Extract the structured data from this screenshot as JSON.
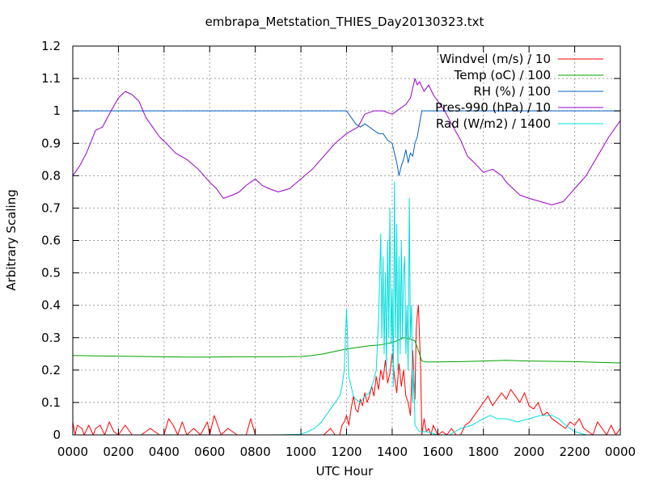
{
  "chart_data": {
    "type": "line",
    "title": "embrapa_Metstation_THIES_Day20130323.txt",
    "xlabel": "UTC Hour",
    "ylabel": "Arbitrary Scaling",
    "xlim": [
      0,
      24
    ],
    "ylim": [
      0,
      1.2
    ],
    "grid": true,
    "legend_position": "top-right",
    "x_ticks": [
      {
        "value": 0,
        "label": "0000"
      },
      {
        "value": 2,
        "label": "0200"
      },
      {
        "value": 4,
        "label": "0400"
      },
      {
        "value": 6,
        "label": "0600"
      },
      {
        "value": 8,
        "label": "0800"
      },
      {
        "value": 10,
        "label": "1000"
      },
      {
        "value": 12,
        "label": "1200"
      },
      {
        "value": 14,
        "label": "1400"
      },
      {
        "value": 16,
        "label": "1600"
      },
      {
        "value": 18,
        "label": "1800"
      },
      {
        "value": 20,
        "label": "2000"
      },
      {
        "value": 22,
        "label": "2200"
      },
      {
        "value": 24,
        "label": "0000"
      }
    ],
    "y_ticks": [
      {
        "value": 0,
        "label": "0"
      },
      {
        "value": 0.1,
        "label": "0.1"
      },
      {
        "value": 0.2,
        "label": "0.2"
      },
      {
        "value": 0.3,
        "label": "0.3"
      },
      {
        "value": 0.4,
        "label": "0.4"
      },
      {
        "value": 0.5,
        "label": "0.5"
      },
      {
        "value": 0.6,
        "label": "0.6"
      },
      {
        "value": 0.7,
        "label": "0.7"
      },
      {
        "value": 0.8,
        "label": "0.8"
      },
      {
        "value": 0.9,
        "label": "0.9"
      },
      {
        "value": 1.0,
        "label": "1"
      },
      {
        "value": 1.1,
        "label": "1.1"
      },
      {
        "value": 1.2,
        "label": "1.2"
      }
    ],
    "series": [
      {
        "name": "Windvel (m/s) / 10",
        "color": "#ff0000",
        "x": [
          0,
          0.1,
          0.2,
          0.4,
          0.5,
          0.7,
          0.9,
          1.0,
          1.2,
          1.4,
          1.6,
          1.8,
          2.0,
          2.3,
          2.6,
          3.0,
          3.4,
          3.8,
          4.0,
          4.2,
          4.4,
          4.6,
          4.8,
          5.0,
          5.3,
          5.6,
          5.9,
          6.0,
          6.2,
          6.5,
          6.8,
          7.2,
          7.6,
          7.8,
          8.0,
          8.4,
          8.8,
          9.2,
          9.6,
          10.0,
          10.5,
          11.0,
          11.3,
          11.5,
          11.7,
          11.8,
          11.9,
          12.0,
          12.1,
          12.2,
          12.3,
          12.4,
          12.5,
          12.6,
          12.7,
          12.8,
          12.9,
          13.0,
          13.1,
          13.2,
          13.3,
          13.4,
          13.5,
          13.6,
          13.7,
          13.8,
          13.9,
          14.0,
          14.1,
          14.2,
          14.3,
          14.4,
          14.5,
          14.6,
          14.7,
          14.8,
          14.9,
          15.0,
          15.05,
          15.1,
          15.15,
          15.2,
          15.25,
          15.3,
          15.4,
          15.5,
          15.6,
          15.7,
          15.8,
          16.0,
          16.2,
          16.4,
          16.6,
          16.8,
          17.0,
          17.2,
          17.4,
          17.6,
          17.8,
          18.0,
          18.2,
          18.4,
          18.6,
          18.8,
          19.0,
          19.2,
          19.4,
          19.6,
          19.8,
          20.0,
          20.2,
          20.4,
          20.6,
          20.8,
          21.0,
          21.2,
          21.4,
          21.6,
          21.8,
          22.0,
          22.2,
          22.4,
          22.6,
          22.8,
          23.0,
          23.2,
          23.4,
          23.6,
          23.8,
          24.0
        ],
        "y": [
          0.04,
          0.0,
          0.03,
          0.02,
          0.0,
          0.03,
          0.0,
          0.02,
          0.03,
          0.0,
          0.04,
          0.01,
          0.0,
          0.03,
          0.0,
          0.0,
          0.02,
          0.0,
          0.0,
          0.05,
          0.03,
          0.0,
          0.04,
          0.0,
          0.02,
          0.0,
          0.04,
          0.0,
          0.06,
          0.0,
          0.02,
          0.0,
          0.0,
          0.05,
          0.0,
          0.0,
          0.0,
          0.0,
          0.0,
          0.0,
          0.0,
          0.0,
          0.02,
          0.0,
          0.0,
          0.03,
          0.04,
          0.06,
          0.03,
          0.08,
          0.12,
          0.08,
          0.07,
          0.11,
          0.09,
          0.13,
          0.1,
          0.12,
          0.15,
          0.12,
          0.18,
          0.14,
          0.2,
          0.17,
          0.23,
          0.16,
          0.19,
          0.25,
          0.18,
          0.13,
          0.22,
          0.15,
          0.2,
          0.12,
          0.1,
          0.06,
          0.26,
          0.11,
          0.32,
          0.37,
          0.4,
          0.3,
          0.2,
          0.0,
          0.05,
          0.01,
          0.02,
          0.0,
          0.03,
          0.0,
          0.01,
          0.0,
          0.02,
          0.0,
          0.0,
          0.03,
          0.04,
          0.06,
          0.08,
          0.1,
          0.12,
          0.09,
          0.11,
          0.13,
          0.11,
          0.14,
          0.12,
          0.1,
          0.13,
          0.09,
          0.08,
          0.1,
          0.06,
          0.07,
          0.05,
          0.04,
          0.03,
          0.02,
          0.04,
          0.03,
          0.05,
          0.02,
          0.01,
          0.0,
          0.04,
          0.02,
          0.0,
          0.03,
          0.0,
          0.02
        ]
      },
      {
        "name": "Temp (oC) / 100",
        "color": "#00a000",
        "x": [
          0,
          1,
          2,
          3,
          4,
          5,
          6,
          7,
          8,
          9,
          10,
          10.5,
          11,
          11.5,
          12,
          12.5,
          13,
          13.5,
          14,
          14.2,
          14.5,
          14.8,
          15,
          15.1,
          15.2,
          15.3,
          15.5,
          16,
          17,
          18,
          19,
          20,
          21,
          22,
          23,
          24
        ],
        "y": [
          0.245,
          0.244,
          0.243,
          0.242,
          0.241,
          0.24,
          0.24,
          0.241,
          0.241,
          0.241,
          0.242,
          0.245,
          0.25,
          0.258,
          0.265,
          0.27,
          0.275,
          0.278,
          0.285,
          0.29,
          0.3,
          0.296,
          0.29,
          0.27,
          0.25,
          0.228,
          0.225,
          0.225,
          0.226,
          0.228,
          0.23,
          0.228,
          0.227,
          0.226,
          0.224,
          0.222
        ]
      },
      {
        "name": "RH (%) / 100",
        "color": "#0060c0",
        "x": [
          0,
          2,
          4,
          6,
          8,
          10,
          11,
          12,
          12.2,
          12.4,
          12.6,
          12.8,
          13,
          13.2,
          13.4,
          13.6,
          13.8,
          14,
          14.1,
          14.2,
          14.3,
          14.4,
          14.5,
          14.6,
          14.7,
          14.8,
          14.9,
          15,
          15.1,
          15.2,
          15.3,
          16,
          18,
          20,
          22,
          24
        ],
        "y": [
          1.0,
          1.0,
          1.0,
          1.0,
          1.0,
          1.0,
          1.0,
          1.0,
          0.98,
          0.96,
          0.95,
          0.96,
          0.95,
          0.94,
          0.93,
          0.93,
          0.91,
          0.9,
          0.87,
          0.84,
          0.8,
          0.83,
          0.85,
          0.88,
          0.84,
          0.87,
          0.86,
          0.9,
          0.92,
          0.96,
          1.0,
          1.0,
          1.0,
          1.0,
          1.0,
          1.0
        ]
      },
      {
        "name": "Pres-990 (hPa) / 10",
        "color": "#9900cc",
        "x": [
          0,
          0.3,
          0.6,
          1.0,
          1.3,
          1.6,
          2.0,
          2.3,
          2.6,
          2.9,
          3.2,
          3.5,
          3.8,
          4.1,
          4.5,
          5.0,
          5.5,
          6.0,
          6.3,
          6.6,
          7.0,
          7.3,
          7.6,
          8.0,
          8.3,
          8.6,
          9.0,
          9.5,
          10.0,
          10.5,
          11.0,
          11.5,
          12.0,
          12.5,
          12.8,
          13.2,
          13.6,
          14.0,
          14.2,
          14.4,
          14.6,
          14.8,
          15.0,
          15.1,
          15.2,
          15.4,
          15.6,
          15.8,
          16.0,
          16.3,
          16.6,
          17.0,
          17.3,
          17.6,
          18.0,
          18.4,
          18.8,
          19.0,
          19.3,
          19.6,
          20.0,
          20.5,
          21.0,
          21.5,
          22.0,
          22.5,
          23.0,
          23.5,
          24.0
        ],
        "y": [
          0.8,
          0.83,
          0.87,
          0.94,
          0.95,
          0.99,
          1.04,
          1.06,
          1.05,
          1.03,
          0.98,
          0.95,
          0.92,
          0.9,
          0.87,
          0.85,
          0.82,
          0.78,
          0.76,
          0.73,
          0.74,
          0.75,
          0.77,
          0.79,
          0.77,
          0.76,
          0.75,
          0.76,
          0.79,
          0.82,
          0.86,
          0.9,
          0.93,
          0.95,
          0.99,
          1.0,
          1.0,
          0.99,
          1.0,
          1.01,
          1.02,
          1.04,
          1.1,
          1.08,
          1.09,
          1.06,
          1.08,
          1.05,
          1.03,
          1.0,
          0.96,
          0.91,
          0.86,
          0.84,
          0.81,
          0.82,
          0.8,
          0.78,
          0.76,
          0.74,
          0.73,
          0.72,
          0.71,
          0.72,
          0.76,
          0.8,
          0.86,
          0.92,
          0.97
        ]
      },
      {
        "name": "Rad (W/m2) / 1400",
        "color": "#00dddd",
        "x": [
          0,
          2,
          4,
          6,
          8,
          9,
          10,
          10.3,
          10.6,
          10.9,
          11.1,
          11.3,
          11.5,
          11.7,
          11.8,
          11.9,
          12.0,
          12.1,
          12.2,
          12.3,
          12.4,
          12.6,
          12.8,
          13.0,
          13.2,
          13.3,
          13.4,
          13.5,
          13.55,
          13.6,
          13.65,
          13.7,
          13.75,
          13.8,
          13.85,
          13.9,
          13.95,
          14.0,
          14.05,
          14.1,
          14.15,
          14.2,
          14.25,
          14.3,
          14.35,
          14.4,
          14.45,
          14.5,
          14.55,
          14.6,
          14.65,
          14.7,
          14.75,
          14.8,
          14.85,
          14.9,
          14.95,
          15.0,
          15.1,
          15.2,
          15.3,
          15.5,
          16.0,
          16.5,
          17.0,
          17.5,
          18.0,
          18.3,
          18.6,
          19.0,
          19.5,
          20.0,
          20.5,
          21.0,
          21.3,
          21.6,
          22.0,
          22.5,
          23.0,
          24.0
        ],
        "y": [
          0.0,
          0.0,
          0.0,
          0.0,
          0.0,
          0.0,
          0.002,
          0.01,
          0.02,
          0.04,
          0.06,
          0.08,
          0.1,
          0.12,
          0.15,
          0.2,
          0.39,
          0.18,
          0.15,
          0.12,
          0.11,
          0.1,
          0.12,
          0.13,
          0.17,
          0.2,
          0.35,
          0.62,
          0.3,
          0.55,
          0.25,
          0.5,
          0.2,
          0.6,
          0.3,
          0.7,
          0.28,
          0.45,
          0.15,
          0.78,
          0.3,
          0.65,
          0.2,
          0.55,
          0.25,
          0.6,
          0.3,
          0.5,
          0.55,
          0.25,
          0.4,
          0.2,
          0.73,
          0.3,
          0.4,
          0.1,
          0.2,
          0.03,
          0.02,
          0.01,
          0.01,
          0.01,
          0.0,
          0.0,
          0.02,
          0.03,
          0.05,
          0.06,
          0.05,
          0.05,
          0.04,
          0.05,
          0.06,
          0.06,
          0.05,
          0.03,
          0.01,
          0.0,
          0.0,
          0.0
        ]
      }
    ]
  }
}
